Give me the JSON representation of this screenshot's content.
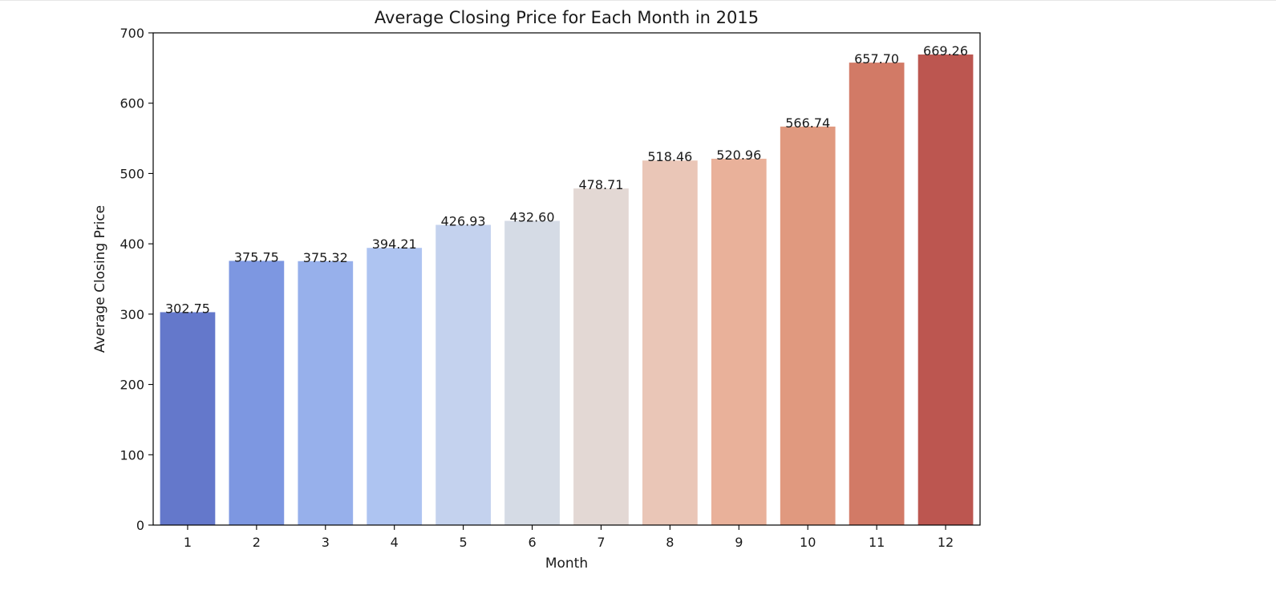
{
  "chart_data": {
    "type": "bar",
    "title": "Average Closing Price for Each Month in 2015",
    "xlabel": "Month",
    "ylabel": "Average Closing Price",
    "categories": [
      "1",
      "2",
      "3",
      "4",
      "5",
      "6",
      "7",
      "8",
      "9",
      "10",
      "11",
      "12"
    ],
    "values": [
      302.75,
      375.75,
      375.32,
      394.21,
      426.93,
      432.6,
      478.71,
      518.46,
      520.96,
      566.74,
      657.7,
      669.26
    ],
    "value_labels": [
      "302.75",
      "375.75",
      "375.32",
      "394.21",
      "426.93",
      "432.60",
      "478.71",
      "518.46",
      "520.96",
      "566.74",
      "657.70",
      "669.26"
    ],
    "colors": [
      "#6478cb",
      "#7d97e1",
      "#97b0eb",
      "#aec4f1",
      "#c4d2ee",
      "#d5dbe5",
      "#e3d8d4",
      "#eac6b7",
      "#e9b19a",
      "#e0997f",
      "#d27a66",
      "#bc5650"
    ],
    "ylim": [
      0,
      700
    ],
    "yticks": [
      0,
      100,
      200,
      300,
      400,
      500,
      600,
      700
    ],
    "ytick_labels": [
      "0",
      "100",
      "200",
      "300",
      "400",
      "500",
      "600",
      "700"
    ],
    "grid": false,
    "legend": "none"
  }
}
